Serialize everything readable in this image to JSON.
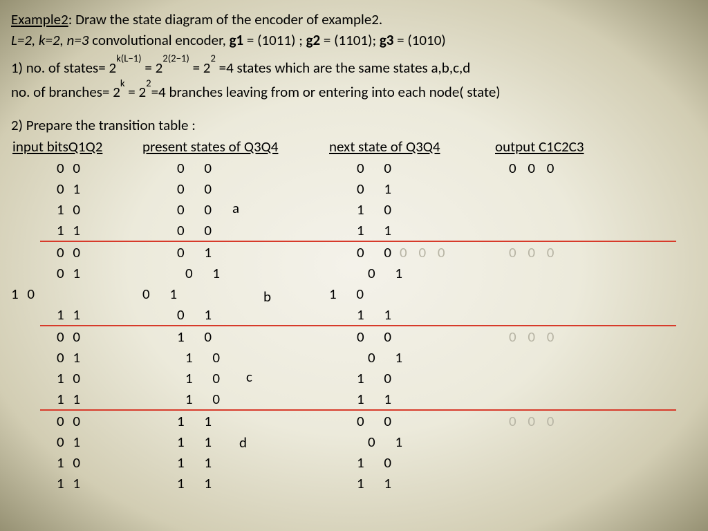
{
  "title": {
    "example_label": "Example2",
    "rest": ": Draw the state diagram of the encoder of example2."
  },
  "params": {
    "lkn": "L=2, k=2, n=3",
    "enc": " convolutional encoder, ",
    "g1l": "g1",
    "g1v": " = (1011) ; ",
    "g2l": "g2",
    "g2v": " = (1101);  ",
    "g3l": "g3",
    "g3v": " = (1010)"
  },
  "calc": {
    "l1a": "1) no. of states= ",
    "l1b": "2",
    "l1b_sup": "k(L−1)",
    "l1c": " =  ",
    "l1d": "2",
    "l1d_sup": "2(2−1)",
    "l1e": " = 2",
    "l1e_sup": "2",
    "l1f": " =4 states which are the same states a,b,c,d",
    "l2a": "no. of branches= ",
    "l2b": "2",
    "l2b_sup": "k",
    "l2c": " = 2",
    "l2c_sup": "2",
    "l2d": "=4 branches leaving from or entering into each node( state)",
    "l3": "2) Prepare the transition table :"
  },
  "head": {
    "h1": "input bitsQ1Q2",
    "h2": "present states of Q3Q4",
    "h3": "next state of Q3Q4",
    "h4": "output C1C2C3"
  },
  "labels": {
    "a": "a",
    "b": "b",
    "c": "c",
    "d": "d"
  },
  "colors": {
    "separator": "#d73a2a",
    "grey": "#b7b4a4"
  },
  "rows": [
    {
      "in": "0 0",
      "ps": "0 0",
      "ns": "0 0",
      "out": "0 0 0"
    },
    {
      "in": "0 1",
      "ps": "0 0",
      "ns": "0 1",
      "out": ""
    },
    {
      "in": "1 0",
      "ps": "0 0",
      "ns": "1 0",
      "out": "",
      "lab": "a"
    },
    {
      "in": "1 1",
      "ps": "0 0",
      "ns": "1 1",
      "out": "",
      "sep": true
    },
    {
      "in": "0 0",
      "ps": "0 1",
      "ns": "0 0",
      "out": "",
      "grey_out": "0 0 0",
      "ns_style": "tight"
    },
    {
      "in": "0 1",
      "ps": "0 1",
      "ns": "0 1",
      "out": "",
      "ps_shift": true,
      "ns_shift": true
    },
    {
      "in": "1 0",
      "ps": "0 1",
      "ns": "1 0",
      "out": "",
      "lab": "b",
      "shift": true
    },
    {
      "in": "1 1",
      "ps": "0 1",
      "ns": "1 1",
      "out": "",
      "sep": true
    },
    {
      "in": "0 0",
      "ps": "1 0",
      "ns": "0 0",
      "out": "",
      "grey_out": "0 0 0"
    },
    {
      "in": "0 1",
      "ps": "1 0",
      "ns": "0 1",
      "out": "",
      "ps_shift": true,
      "ns_shift": true
    },
    {
      "in": "1 0",
      "ps": "1 0",
      "ns": "1 0",
      "out": "",
      "lab": "c",
      "ps_shift": true
    },
    {
      "in": "1 1",
      "ps": "1 0",
      "ns": "1 1",
      "out": "",
      "sep": true,
      "ps_shift": true
    },
    {
      "in": "0 0",
      "ps": "1 1",
      "ns": "0 0",
      "out": "",
      "grey_out": "0 0 0"
    },
    {
      "in": "0 1",
      "ps": "1 1",
      "ns": "0 1",
      "out": "",
      "lab": "d",
      "ns_shift": true
    },
    {
      "in": "1 0",
      "ps": "1 1",
      "ns": "1 0",
      "out": ""
    },
    {
      "in": "1 1",
      "ps": "1 1",
      "ns": "1 1",
      "out": ""
    }
  ]
}
